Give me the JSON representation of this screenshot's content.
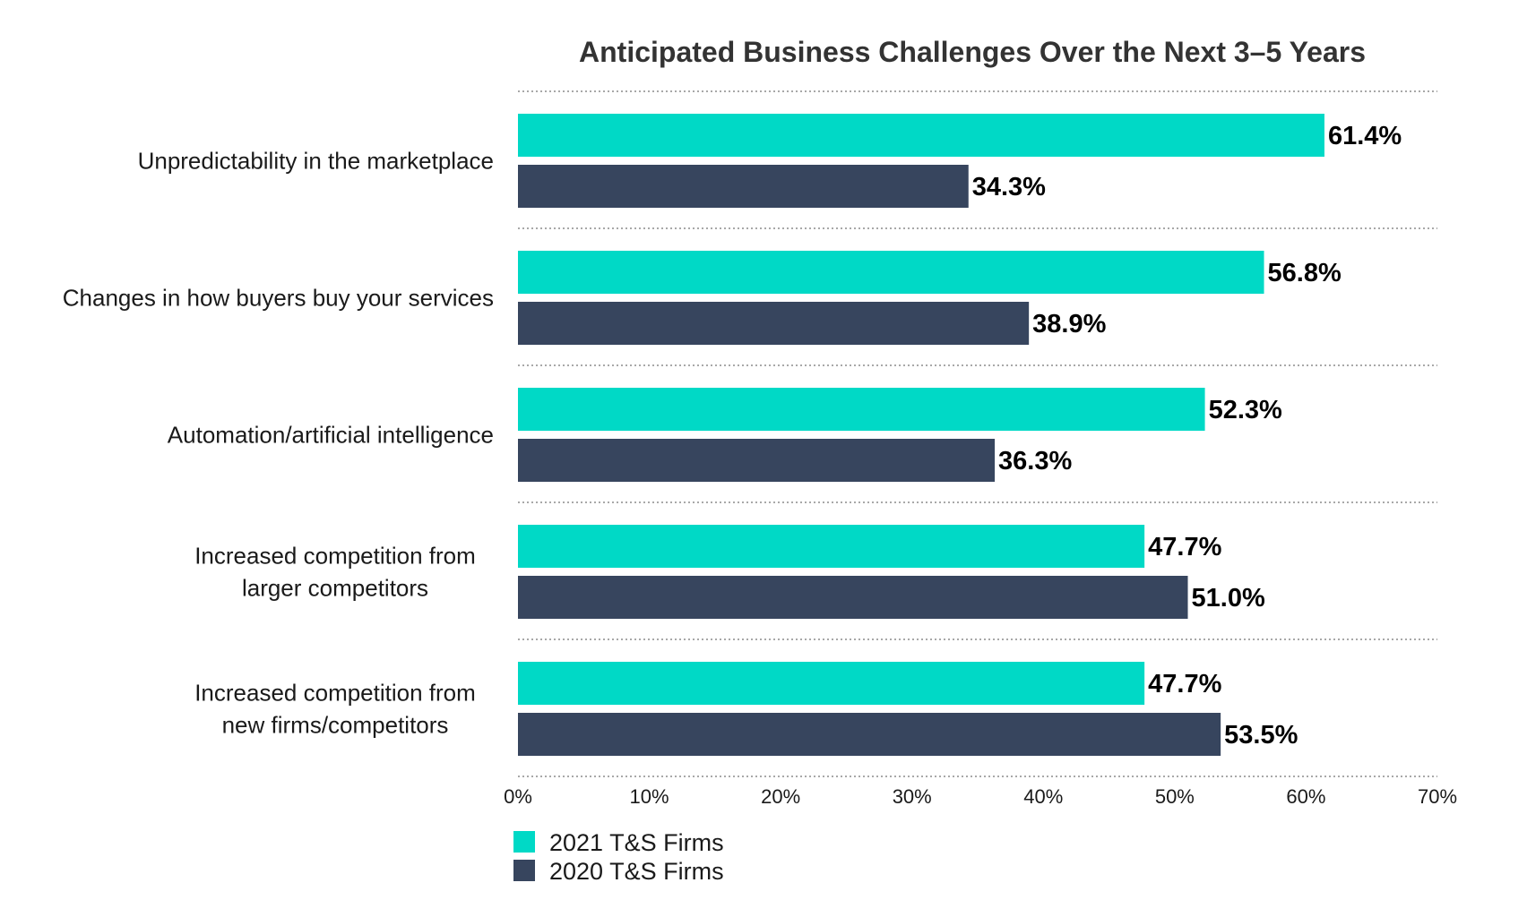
{
  "chart_data": {
    "type": "bar",
    "orientation": "horizontal",
    "title": "Anticipated Business Challenges Over the Next 3–5 Years",
    "categories": [
      [
        "Unpredictability in the marketplace"
      ],
      [
        "Changes in how buyers buy your services"
      ],
      [
        "Automation/artificial intelligence"
      ],
      [
        "Increased competition from",
        "larger competitors"
      ],
      [
        "Increased competition from",
        "new firms/competitors"
      ]
    ],
    "series": [
      {
        "name": "2021 T&S Firms",
        "color": "#00d9c6",
        "values": [
          61.4,
          56.8,
          52.3,
          47.7,
          47.7
        ],
        "labels": [
          "61.4%",
          "56.8%",
          "52.3%",
          "47.7%",
          "47.7%"
        ]
      },
      {
        "name": "2020 T&S Firms",
        "color": "#37455e",
        "values": [
          34.3,
          38.9,
          36.3,
          51.0,
          53.5
        ],
        "labels": [
          "34.3%",
          "38.9%",
          "36.3%",
          "51.0%",
          "53.5%"
        ]
      }
    ],
    "xlim": [
      0,
      70
    ],
    "xticks": [
      0,
      10,
      20,
      30,
      40,
      50,
      60,
      70
    ],
    "xtick_labels": [
      "0%",
      "10%",
      "20%",
      "30%",
      "40%",
      "50%",
      "60%",
      "70%"
    ],
    "xlabel": "",
    "ylabel": "",
    "grid": "dotted separators between categories",
    "legend_position": "bottom-left"
  }
}
